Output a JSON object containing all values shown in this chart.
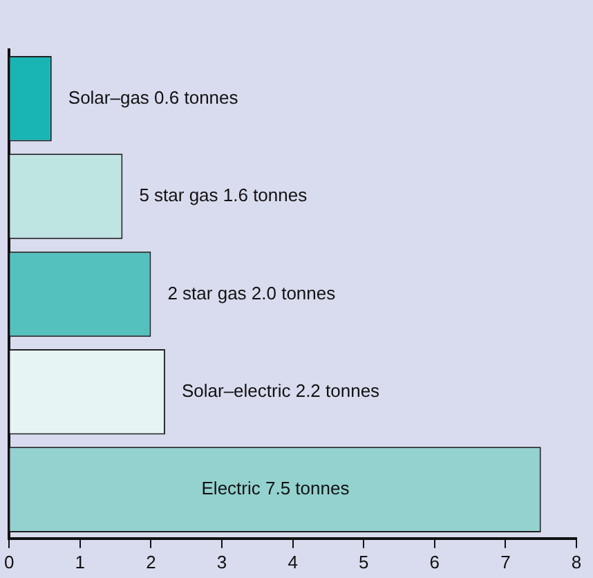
{
  "chart_data": {
    "type": "bar",
    "orientation": "horizontal",
    "categories": [
      null,
      null,
      null,
      null,
      null
    ],
    "values": [
      0.6,
      1.6,
      2.0,
      2.2,
      7.5
    ],
    "colors": [
      "#19b5b5",
      "#bfe5e3",
      "#55c1be",
      "#e6f5f4",
      "#93d2cf"
    ],
    "value_labels": [
      "Solar–gas 0.6 tonnes",
      "5 star gas 1.6 tonnes",
      "2 star gas 2.0 tonnes",
      "Solar–electric 2.2 tonnes",
      "Electric 7.5 tonnes"
    ],
    "xlim": [
      0,
      8
    ],
    "xticks": [
      0,
      1,
      2,
      3,
      4,
      5,
      6,
      7,
      8
    ],
    "grid": false,
    "legend": false
  }
}
